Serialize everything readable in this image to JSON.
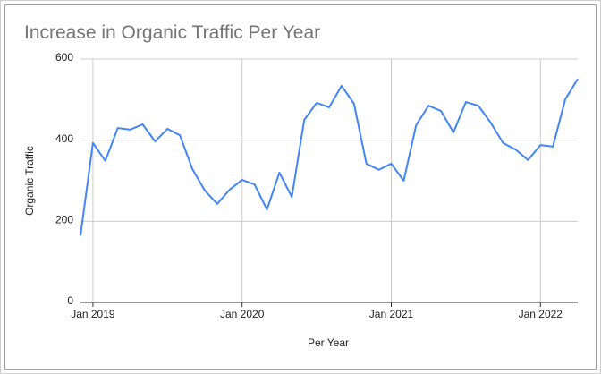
{
  "chart_data": {
    "type": "line",
    "title": "Increase in Organic Traffic Per Year",
    "x_label": "Per Year",
    "y_label": "Organic Traffic",
    "categories": [
      null,
      "Jan 2019",
      null,
      null,
      null,
      null,
      null,
      null,
      null,
      null,
      null,
      null,
      null,
      "Jan 2020",
      null,
      null,
      null,
      null,
      null,
      null,
      null,
      null,
      null,
      null,
      null,
      "Jan 2021",
      null,
      null,
      null,
      null,
      null,
      null,
      null,
      null,
      null,
      null,
      null,
      "Jan 2022",
      null,
      null,
      null
    ],
    "series": [
      {
        "name": "Organic Traffic",
        "color": "#4285f4",
        "values": [
          165,
          393,
          349,
          430,
          426,
          439,
          397,
          428,
          412,
          329,
          276,
          243,
          278,
          302,
          291,
          229,
          320,
          260,
          450,
          492,
          481,
          534,
          490,
          342,
          327,
          342,
          300,
          437,
          485,
          472,
          419,
          494,
          485,
          443,
          393,
          377,
          351,
          388,
          384,
          501,
          551
        ]
      }
    ],
    "ylim": [
      0,
      600
    ],
    "yticks": [
      0,
      200,
      400,
      600
    ],
    "grid": true
  }
}
